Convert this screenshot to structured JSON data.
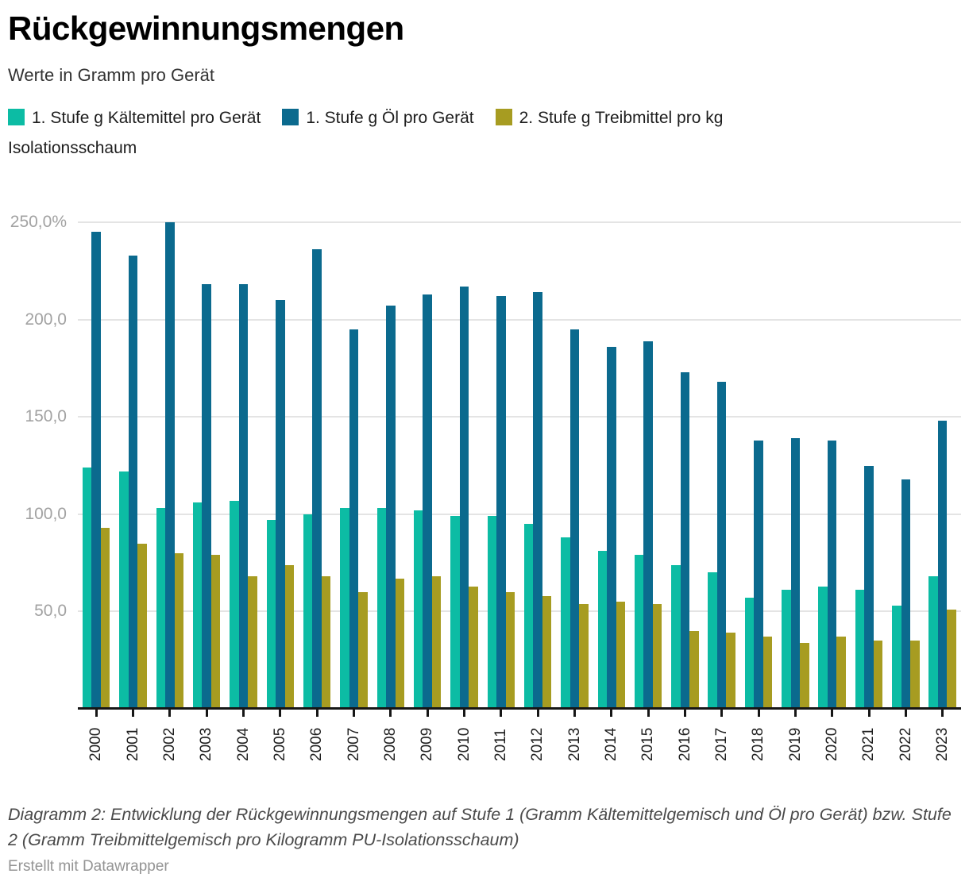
{
  "chart_data": {
    "type": "bar",
    "title": "Rückgewinnungsmengen",
    "subtitle": "Werte in Gramm pro Gerät",
    "categories": [
      "2000",
      "2001",
      "2002",
      "2003",
      "2004",
      "2005",
      "2006",
      "2007",
      "2008",
      "2009",
      "2010",
      "2011",
      "2012",
      "2013",
      "2014",
      "2015",
      "2016",
      "2017",
      "2018",
      "2019",
      "2020",
      "2021",
      "2022",
      "2023"
    ],
    "series": [
      {
        "name": "1. Stufe g Kältemittel pro Gerät",
        "color": "#0cbca4",
        "values": [
          124,
          122,
          103,
          106,
          107,
          97,
          100,
          103,
          103,
          102,
          99,
          99,
          95,
          88,
          81,
          79,
          74,
          70,
          57,
          61,
          63,
          61,
          53,
          68
        ]
      },
      {
        "name": "1. Stufe g Öl pro Gerät",
        "color": "#0b6a8e",
        "values": [
          245,
          233,
          250,
          218,
          218,
          210,
          236,
          195,
          207,
          213,
          217,
          212,
          214,
          195,
          186,
          189,
          173,
          168,
          138,
          139,
          138,
          125,
          118,
          148
        ]
      },
      {
        "name": "2. Stufe g Treibmittel pro kg Isolationsschaum",
        "color": "#a79c21",
        "values": [
          93,
          85,
          80,
          79,
          68,
          74,
          68,
          60,
          67,
          68,
          63,
          60,
          58,
          54,
          55,
          54,
          40,
          39,
          37,
          34,
          37,
          35,
          35,
          51
        ]
      }
    ],
    "y_axis": {
      "ticks": [
        {
          "value": 250,
          "label": "250,0%"
        },
        {
          "value": 200,
          "label": "200,0"
        },
        {
          "value": 150,
          "label": "150,0"
        },
        {
          "value": 100,
          "label": "100,0"
        },
        {
          "value": 50,
          "label": "50,0"
        }
      ],
      "min": 0,
      "max": 250
    },
    "grid": true,
    "legend_position": "top",
    "colors": {
      "grid": "#e4e4e4",
      "axis": "#161616",
      "y_label": "#a2a2a2",
      "x_label": "#1f1f1f"
    }
  },
  "footer": {
    "caption": "Diagramm 2: Entwicklung der Rückgewinnungsmengen auf Stufe 1 (Gramm Kältemittelgemisch und Öl pro Gerät) bzw. Stufe 2 (Gramm Treibmittelgemisch pro Kilogramm PU-Isolationsschaum)",
    "attribution": "Erstellt mit Datawrapper"
  }
}
